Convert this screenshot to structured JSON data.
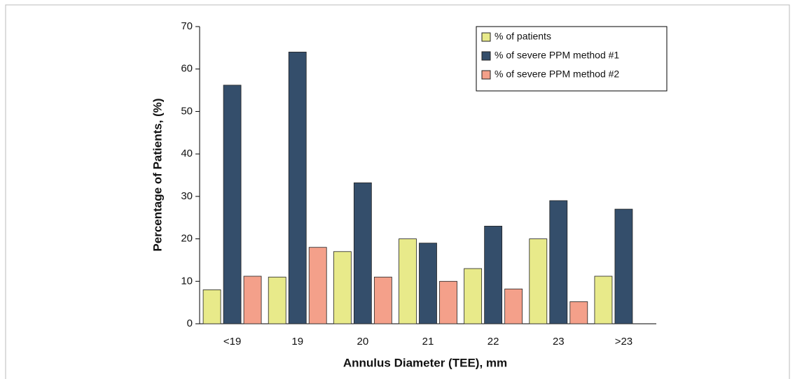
{
  "chart_data": {
    "type": "bar",
    "x_label": "Annulus Diameter (TEE), mm",
    "y_label": "Percentage of Patients, (%)",
    "categories": [
      "<19",
      "19",
      "20",
      "21",
      "22",
      "23",
      ">23"
    ],
    "series": [
      {
        "name": "% of patients",
        "color": "#e8ea8a",
        "values": [
          8,
          11,
          17,
          20,
          13,
          20,
          11.2
        ]
      },
      {
        "name": "% of severe PPM method #1",
        "color": "#344e6b",
        "values": [
          56.2,
          64,
          33.2,
          19,
          23,
          29,
          27
        ]
      },
      {
        "name": "% of severe PPM method #2",
        "color": "#f4a08a",
        "values": [
          11.2,
          18,
          11,
          10,
          8.2,
          5.2,
          null
        ]
      }
    ],
    "ylim": [
      0,
      70
    ],
    "yticks": [
      0,
      10,
      20,
      30,
      40,
      50,
      60,
      70
    ],
    "legend": "upper right"
  }
}
